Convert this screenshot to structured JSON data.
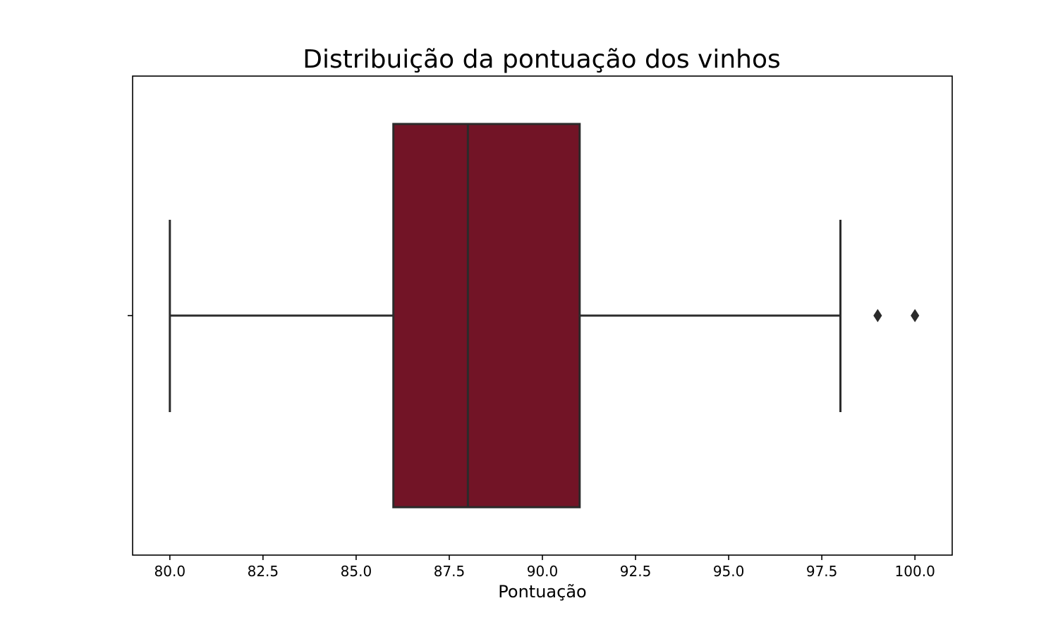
{
  "chart_data": {
    "type": "boxplot",
    "title": "Distribuição da pontuação dos vinhos",
    "xlabel": "Pontuação",
    "ylabel": "",
    "xlim": [
      79,
      101
    ],
    "xticks": [
      80.0,
      82.5,
      85.0,
      87.5,
      90.0,
      92.5,
      95.0,
      97.5,
      100.0
    ],
    "xtick_labels": [
      "80.0",
      "82.5",
      "85.0",
      "87.5",
      "90.0",
      "92.5",
      "95.0",
      "97.5",
      "100.0"
    ],
    "orientation": "horizontal",
    "grid": false,
    "box": {
      "whisker_low": 80,
      "q1": 86,
      "median": 88,
      "q3": 91,
      "whisker_high": 98,
      "outliers": [
        99,
        100
      ]
    },
    "colors": {
      "box_fill": "#721426",
      "line": "#2b2b2b"
    }
  }
}
